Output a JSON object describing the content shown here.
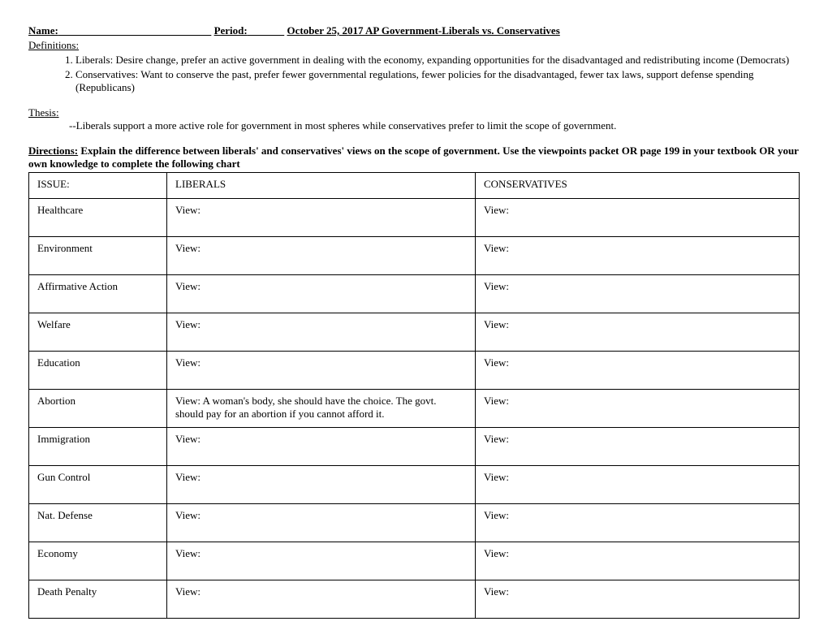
{
  "header": {
    "name_label": "Name:",
    "period_label": "Period:",
    "date_title": "October 25, 2017 AP Government-Liberals vs. Conservatives"
  },
  "definitions_label": "Definitions:",
  "definitions": [
    "Liberals: Desire change, prefer an active government in dealing with the economy, expanding opportunities for the disadvantaged and redistributing income (Democrats)",
    "Conservatives: Want to conserve the past, prefer fewer governmental regulations, fewer policies for the disadvantaged, fewer tax laws, support defense spending (Republicans)"
  ],
  "thesis_label": "Thesis:",
  "thesis_text": "--Liberals support a more active role for government in most spheres while conservatives prefer to limit the scope of government.",
  "directions_label": "Directions:",
  "directions_text": " Explain the difference between liberals' and conservatives' views on the scope of government.  Use the viewpoints packet OR page 199 in your textbook OR your own knowledge to complete the following chart",
  "table": {
    "headers": {
      "issue": "ISSUE:",
      "liberals": "LIBERALS",
      "conservatives": "CONSERVATIVES"
    },
    "rows": [
      {
        "issue": "Healthcare",
        "liberals": "View:",
        "conservatives": "View:"
      },
      {
        "issue": "Environment",
        "liberals": "View:",
        "conservatives": "View:"
      },
      {
        "issue": "Affirmative Action",
        "liberals": "View:",
        "conservatives": "View:"
      },
      {
        "issue": "Welfare",
        "liberals": "View:",
        "conservatives": "View:"
      },
      {
        "issue": "Education",
        "liberals": "View:",
        "conservatives": "View:"
      },
      {
        "issue": "Abortion",
        "liberals": "View: A woman's body, she should have the choice.  The govt. should pay for an abortion if you cannot afford it.",
        "conservatives": "View:"
      },
      {
        "issue": "Immigration",
        "liberals": "View:",
        "conservatives": "View:"
      },
      {
        "issue": "Gun Control",
        "liberals": "View:",
        "conservatives": "View:"
      },
      {
        "issue": "Nat. Defense",
        "liberals": "View:",
        "conservatives": "View:"
      },
      {
        "issue": "Economy",
        "liberals": "View:",
        "conservatives": "View:"
      },
      {
        "issue": "Death Penalty",
        "liberals": "View:",
        "conservatives": "View:"
      }
    ]
  }
}
